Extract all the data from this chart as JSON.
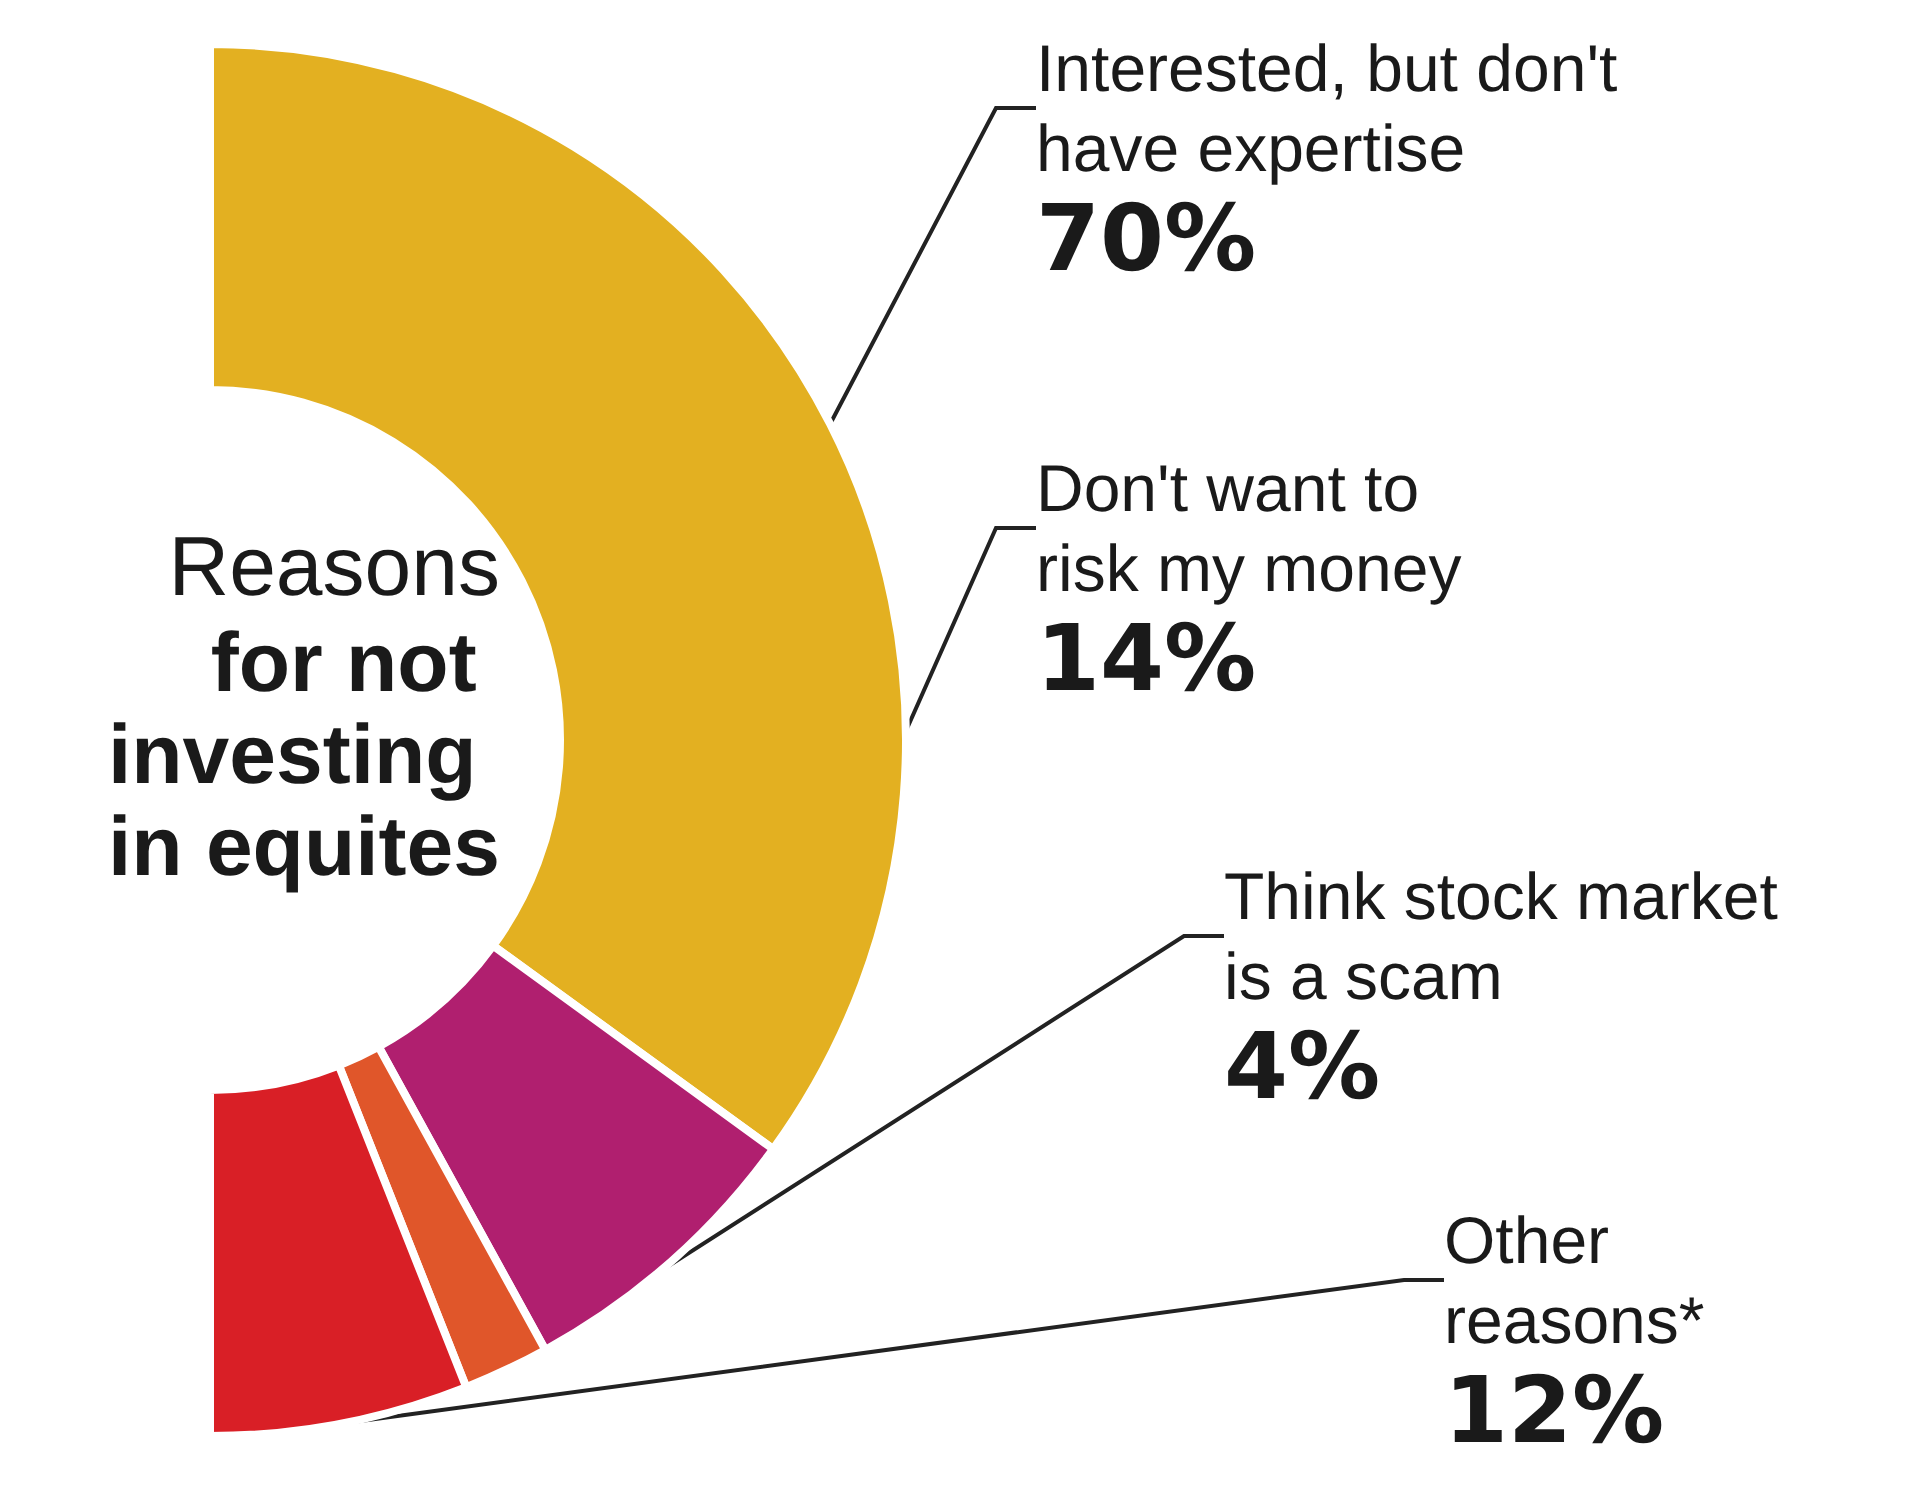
{
  "chart_data": {
    "type": "donut",
    "title": "Reasons for not investing in equites",
    "categories": [
      "Interested, but don't have expertise",
      "Don't want to risk my money",
      "Think stock market is a scam",
      "Other reasons*"
    ],
    "values": [
      70,
      14,
      4,
      12
    ],
    "value_labels": [
      "70%",
      "14%",
      "4%",
      "12%"
    ],
    "colors": [
      "#e3b021",
      "#b01f6f",
      "#e0562a",
      "#d91f26"
    ],
    "legend": false
  }
}
